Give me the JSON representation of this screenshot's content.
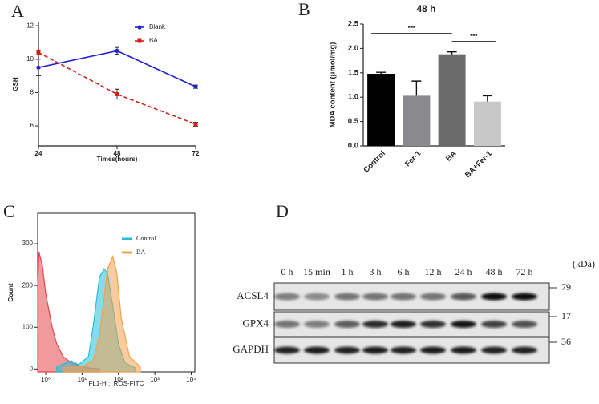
{
  "chart_data": [
    {
      "type": "line",
      "ylabel": "GSH",
      "xlabel": "Times(hours)",
      "xlim": [
        24,
        72
      ],
      "xticks": [
        24,
        48,
        72
      ],
      "ylim": [
        4.8,
        12.2
      ],
      "yticks": [
        6,
        8,
        10,
        12
      ],
      "legend": "upper right",
      "series": [
        {
          "name": "Blank",
          "color": "#2323c8",
          "marker": "circle",
          "dash": false,
          "x": [
            24,
            48,
            72
          ],
          "values": [
            9.5,
            10.5,
            8.35
          ],
          "errors": [
            0.5,
            0.2,
            0.1
          ]
        },
        {
          "name": "BA",
          "color": "#d0201a",
          "marker": "square",
          "dash": true,
          "x": [
            24,
            48,
            72
          ],
          "values": [
            10.4,
            7.9,
            6.1
          ],
          "errors": [
            0.15,
            0.3,
            0.12
          ]
        }
      ]
    },
    {
      "type": "bar",
      "title": "48 h",
      "ylabel": "MDA content (μmol/mg)",
      "categories": [
        "Control",
        "Fer-1",
        "BA",
        "BA+Fer-1"
      ],
      "values": [
        1.48,
        1.03,
        1.88,
        0.91
      ],
      "errors": [
        0.03,
        0.3,
        0.05,
        0.12
      ],
      "colors": [
        "#000000",
        "#8a8a8e",
        "#6b6b6b",
        "#c8c8c8"
      ],
      "ylim": [
        0,
        2.5
      ],
      "yticks": [
        {
          "value": 0,
          "label": "0.0"
        },
        0.5,
        {
          "value": 1,
          "label": "1.0"
        },
        1.5,
        {
          "value": 2,
          "label": "2.0"
        },
        2.5
      ],
      "annotations": [
        "***",
        "***"
      ]
    },
    {
      "type": "area",
      "ylabel": "Count",
      "xlabel": "FL1-H :: ROS-FITC",
      "xscale": "log",
      "xlim": [
        0.6,
        12600
      ],
      "xticks": [
        {
          "value": 1,
          "label": "10⁰"
        },
        {
          "value": 10,
          "label": "10¹"
        },
        {
          "value": 100,
          "label": "10²"
        },
        {
          "value": 1000,
          "label": "10³"
        },
        {
          "value": 10000,
          "label": "10⁴"
        }
      ],
      "ylim": [
        -7,
        373
      ],
      "yticks": [
        0,
        100,
        200,
        300
      ],
      "frame": true,
      "legend": "upper right",
      "series": [
        {
          "color": "#e8464a",
          "x": [
            0.6,
            0.65,
            0.8,
            1,
            1.5,
            2,
            3,
            5,
            8,
            15,
            30
          ],
          "values": [
            200,
            280,
            250,
            180,
            100,
            60,
            30,
            15,
            8,
            3,
            0
          ]
        },
        {
          "name": "Control",
          "color": "#21c0d8",
          "x": [
            2,
            5,
            8,
            15,
            20,
            30,
            40,
            50,
            70,
            100,
            150,
            300
          ],
          "values": [
            5,
            20,
            10,
            30,
            100,
            220,
            240,
            230,
            150,
            60,
            15,
            2
          ]
        },
        {
          "name": "BA",
          "color": "#f5a04a",
          "x": [
            3,
            10,
            20,
            30,
            50,
            70,
            90,
            120,
            200,
            400
          ],
          "values": [
            3,
            5,
            20,
            80,
            240,
            270,
            230,
            120,
            30,
            5
          ]
        }
      ]
    }
  ],
  "panel_labels": [
    "A",
    "B",
    "C",
    "D"
  ],
  "blot": {
    "lanes": [
      "0 h",
      "15 min",
      "1 h",
      "3 h",
      "6 h",
      "12 h",
      "24 h",
      "48 h",
      "72 h"
    ],
    "unit": "(kDa)",
    "rows": [
      {
        "label": "ACSL4",
        "marker": "79"
      },
      {
        "label": "GPX4",
        "marker": "17"
      },
      {
        "label": "GAPDH",
        "marker": "36"
      }
    ]
  }
}
